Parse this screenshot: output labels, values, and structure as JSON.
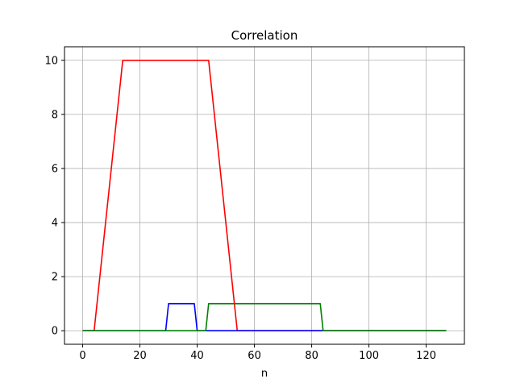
{
  "chart_data": {
    "type": "line",
    "title": "Correlation",
    "xlabel": "n",
    "ylabel": "",
    "xlim": [
      -6.35,
      133.35
    ],
    "ylim": [
      -0.5,
      10.5
    ],
    "xticks": [
      0,
      20,
      40,
      60,
      80,
      100,
      120
    ],
    "yticks": [
      0,
      2,
      4,
      6,
      8,
      10
    ],
    "grid": true,
    "legend": "none",
    "colors": {
      "grid": "#b0b0b0",
      "axes": "#000000",
      "background": "#ffffff"
    },
    "series": [
      {
        "color": "#ff0000",
        "x": [
          0,
          4,
          14,
          44,
          54,
          127
        ],
        "y": [
          0,
          0,
          10,
          10,
          0,
          0
        ]
      },
      {
        "color": "#0000ff",
        "x": [
          0,
          29,
          30,
          39,
          40,
          43,
          127
        ],
        "y": [
          0,
          0,
          1,
          1,
          0,
          0,
          0
        ]
      },
      {
        "color": "#008000",
        "x": [
          0,
          43,
          44,
          83,
          84,
          127
        ],
        "y": [
          0,
          0,
          1,
          1,
          0,
          0
        ]
      }
    ]
  }
}
